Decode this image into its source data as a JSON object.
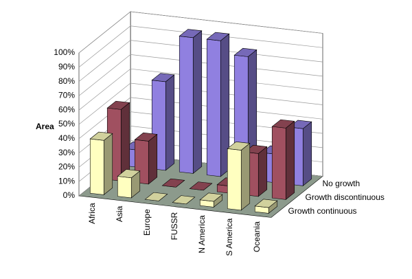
{
  "chart_data": {
    "type": "bar3d",
    "y_label": "Area",
    "categories": [
      "Africa",
      "Asia",
      "Europe",
      "FUSSR",
      "N America",
      "S America",
      "Oceania"
    ],
    "series": [
      {
        "name": "Growth continuous",
        "color": "#ffffc0",
        "values": [
          38,
          14,
          0,
          0,
          4,
          42,
          4
        ]
      },
      {
        "name": "Growth discontinuous",
        "color": "#a05060",
        "values": [
          50,
          30,
          0,
          0,
          5,
          30,
          50
        ]
      },
      {
        "name": "No growth",
        "color": "#9080e0",
        "values": [
          12,
          62,
          95,
          95,
          86,
          20,
          40
        ]
      }
    ],
    "ylim": [
      0,
      100
    ],
    "yticks": [
      {
        "value": 0,
        "label": "0%"
      },
      {
        "value": 10,
        "label": "10%"
      },
      {
        "value": 20,
        "label": "20%"
      },
      {
        "value": 30,
        "label": "30%"
      },
      {
        "value": 40,
        "label": "40%"
      },
      {
        "value": 50,
        "label": "50%"
      },
      {
        "value": 60,
        "label": "60%"
      },
      {
        "value": 70,
        "label": "70%"
      },
      {
        "value": 80,
        "label": "80%"
      },
      {
        "value": 90,
        "label": "90%"
      },
      {
        "value": 100,
        "label": "100%"
      }
    ],
    "grid": true
  }
}
